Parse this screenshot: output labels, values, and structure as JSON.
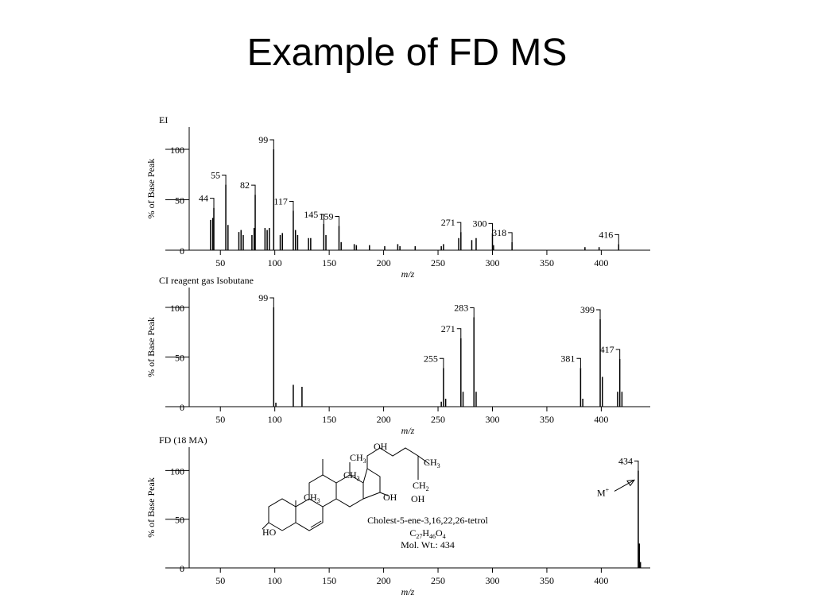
{
  "title": "Example of FD MS",
  "chart_data": [
    {
      "type": "bar",
      "title": "EI",
      "y_label": "% of Base Peak",
      "x_label": "m/z",
      "xlim": [
        25,
        445
      ],
      "xticks": [
        50,
        100,
        150,
        200,
        250,
        300,
        350,
        400
      ],
      "ylim": [
        0,
        122
      ],
      "yticks": [
        0,
        50,
        100
      ],
      "color": "#000000",
      "x": [
        44,
        55,
        82,
        99,
        117,
        145,
        159,
        271,
        300,
        318,
        416
      ],
      "values": [
        42,
        65,
        55,
        100,
        39,
        26,
        24,
        18,
        17,
        8,
        6
      ],
      "minor_x": [
        41,
        43,
        57,
        67,
        69,
        71,
        79,
        81,
        91,
        93,
        95,
        105,
        107,
        119,
        121,
        131,
        133,
        147,
        161,
        173,
        175,
        187,
        201,
        213,
        215,
        229,
        253,
        255,
        269,
        281,
        285,
        301,
        385,
        398
      ],
      "minor_values": [
        30,
        32,
        25,
        18,
        20,
        15,
        15,
        22,
        22,
        20,
        22,
        15,
        17,
        20,
        15,
        12,
        12,
        15,
        8,
        6,
        5,
        5,
        4,
        6,
        4,
        4,
        4,
        6,
        12,
        10,
        12,
        5,
        3,
        3
      ]
    },
    {
      "type": "bar",
      "title": "CI reagent gas Isobutane",
      "y_label": "% of Base Peak",
      "x_label": "m/z",
      "xlim": [
        25,
        445
      ],
      "xticks": [
        50,
        100,
        150,
        200,
        250,
        300,
        350,
        400
      ],
      "ylim": [
        0,
        120
      ],
      "yticks": [
        0,
        50,
        100
      ],
      "color": "#000000",
      "x": [
        99,
        255,
        271,
        283,
        381,
        399,
        417
      ],
      "values": [
        100,
        39,
        69,
        90,
        39,
        88,
        48
      ],
      "minor_x": [
        101,
        117,
        125,
        253,
        257,
        273,
        285,
        383,
        401,
        415,
        419
      ],
      "minor_values": [
        4,
        22,
        20,
        5,
        8,
        15,
        15,
        8,
        30,
        15,
        15
      ]
    },
    {
      "type": "bar",
      "title": "FD (18 MA)",
      "y_label": "% of Base Peak",
      "x_label": "m/z",
      "xlim": [
        25,
        445
      ],
      "xticks": [
        50,
        100,
        150,
        200,
        250,
        300,
        350,
        400
      ],
      "ylim": [
        0,
        124
      ],
      "yticks": [
        0,
        50,
        100
      ],
      "color": "#000000",
      "x": [
        434
      ],
      "values": [
        100
      ],
      "minor_x": [
        435,
        436
      ],
      "minor_values": [
        25,
        6
      ],
      "annotation": {
        "text": "M",
        "sup": "+"
      }
    }
  ],
  "structure": {
    "name": "Cholest-5-ene-3,16,22,26-tetrol",
    "formula": [
      "C",
      "27",
      "H",
      "46",
      "O",
      "4"
    ],
    "mol_wt": "Mol. Wt.: 434",
    "atoms": [
      {
        "text": "HO"
      },
      {
        "text": "CH",
        "sub": "3"
      },
      {
        "text": "CH",
        "sub": "3"
      },
      {
        "text": "CH",
        "sub": "3"
      },
      {
        "text": "OH"
      },
      {
        "text": "CH",
        "sub": "3"
      },
      {
        "text": "CH",
        "sub": "2"
      },
      {
        "text": "OH"
      },
      {
        "text": "OH"
      }
    ]
  }
}
